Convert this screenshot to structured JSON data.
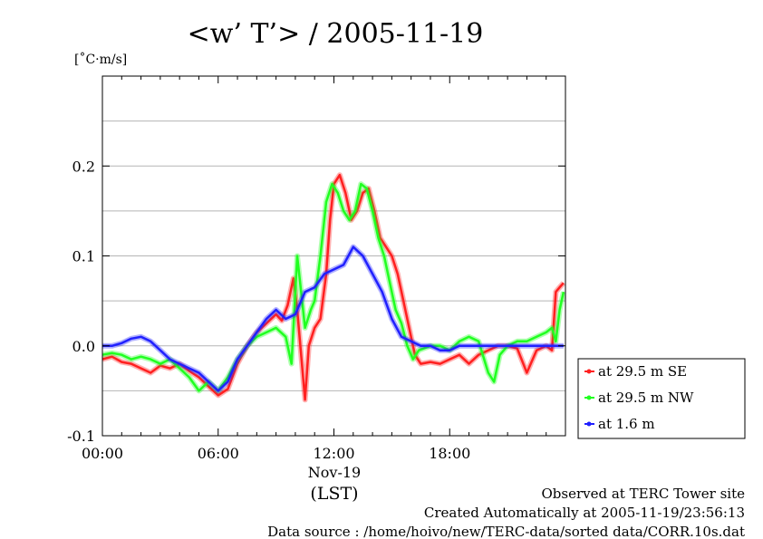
{
  "chart_data": {
    "type": "line",
    "title": "<w’ T’> / 2005-11-19",
    "ylabel": "[˚C·m/s]",
    "xlabel": "(LST)",
    "xdate_label": "Nov-19",
    "xlim": [
      0,
      24
    ],
    "ylim": [
      -0.1,
      0.3
    ],
    "x_ticks": [
      {
        "value": 0,
        "label": "00:00"
      },
      {
        "value": 6,
        "label": "06:00"
      },
      {
        "value": 12,
        "label": "12:00"
      },
      {
        "value": 18,
        "label": "18:00"
      }
    ],
    "y_ticks": [
      {
        "value": -0.1,
        "label": "-0.1"
      },
      {
        "value": 0.0,
        "label": "0.0"
      },
      {
        "value": 0.1,
        "label": "0.1"
      },
      {
        "value": 0.2,
        "label": "0.2"
      }
    ],
    "y_gridlines": [
      -0.05,
      0.0,
      0.05,
      0.1,
      0.15,
      0.2,
      0.25
    ],
    "legend_position": "right-bottom",
    "series": [
      {
        "name": "at 29.5 m SE",
        "color": "#ff2020",
        "x": [
          0,
          0.5,
          1,
          1.5,
          2,
          2.5,
          3,
          3.5,
          4,
          4.5,
          5,
          5.5,
          6,
          6.5,
          7,
          7.5,
          8,
          8.5,
          9,
          9.3,
          9.6,
          9.9,
          10.1,
          10.3,
          10.5,
          10.7,
          11,
          11.3,
          11.6,
          11.8,
          12,
          12.3,
          12.6,
          12.9,
          13.2,
          13.5,
          13.8,
          14.1,
          14.4,
          14.7,
          15,
          15.3,
          15.6,
          15.9,
          16.2,
          16.5,
          17,
          17.5,
          18,
          18.5,
          19,
          19.5,
          20,
          20.5,
          21,
          21.5,
          22,
          22.5,
          23,
          23.3,
          23.5,
          23.7,
          23.9
        ],
        "y": [
          -0.015,
          -0.012,
          -0.018,
          -0.02,
          -0.025,
          -0.03,
          -0.022,
          -0.025,
          -0.02,
          -0.028,
          -0.035,
          -0.045,
          -0.055,
          -0.048,
          -0.02,
          0.0,
          0.015,
          0.025,
          0.035,
          0.028,
          0.045,
          0.075,
          0.04,
          -0.01,
          -0.06,
          0.0,
          0.02,
          0.03,
          0.08,
          0.14,
          0.18,
          0.19,
          0.17,
          0.14,
          0.15,
          0.17,
          0.175,
          0.15,
          0.12,
          0.11,
          0.1,
          0.08,
          0.05,
          0.02,
          -0.01,
          -0.02,
          -0.018,
          -0.02,
          -0.015,
          -0.01,
          -0.02,
          -0.01,
          -0.005,
          0.0,
          0.0,
          -0.003,
          -0.03,
          -0.005,
          0.0,
          -0.005,
          0.06,
          0.065,
          0.07
        ]
      },
      {
        "name": "at 29.5 m NW",
        "color": "#20ff20",
        "x": [
          0,
          0.5,
          1,
          1.5,
          2,
          2.5,
          3,
          3.5,
          4,
          4.5,
          5,
          5.5,
          6,
          6.5,
          7,
          7.5,
          8,
          8.5,
          9,
          9.5,
          9.8,
          10.1,
          10.3,
          10.5,
          10.8,
          11,
          11.3,
          11.6,
          11.9,
          12.2,
          12.5,
          12.8,
          13.1,
          13.4,
          13.7,
          14,
          14.3,
          14.6,
          14.9,
          15.2,
          15.5,
          15.8,
          16.1,
          16.4,
          17,
          17.5,
          18,
          18.5,
          19,
          19.5,
          20,
          20.3,
          20.6,
          21,
          21.5,
          22,
          22.5,
          23,
          23.3,
          23.5,
          23.7,
          23.9
        ],
        "y": [
          -0.01,
          -0.008,
          -0.01,
          -0.015,
          -0.012,
          -0.015,
          -0.02,
          -0.015,
          -0.025,
          -0.035,
          -0.05,
          -0.04,
          -0.05,
          -0.035,
          -0.015,
          0.0,
          0.01,
          0.015,
          0.02,
          0.01,
          -0.02,
          0.1,
          0.06,
          0.02,
          0.04,
          0.05,
          0.1,
          0.16,
          0.18,
          0.17,
          0.15,
          0.14,
          0.15,
          0.18,
          0.175,
          0.15,
          0.12,
          0.1,
          0.07,
          0.04,
          0.025,
          0.0,
          -0.015,
          -0.005,
          0.0,
          0.0,
          -0.005,
          0.005,
          0.01,
          0.005,
          -0.03,
          -0.04,
          -0.01,
          0.0,
          0.005,
          0.005,
          0.01,
          0.015,
          0.02,
          0.005,
          0.04,
          0.06
        ]
      },
      {
        "name": "at 1.6 m",
        "color": "#2020ff",
        "x": [
          0,
          0.5,
          1,
          1.5,
          2,
          2.5,
          3,
          3.5,
          4,
          4.5,
          5,
          5.5,
          6,
          6.5,
          7,
          7.5,
          8,
          8.5,
          9,
          9.5,
          10,
          10.5,
          11,
          11.5,
          12,
          12.5,
          13,
          13.5,
          14,
          14.5,
          15,
          15.5,
          16,
          16.5,
          17,
          17.5,
          18,
          18.5,
          19,
          19.5,
          20,
          21,
          22,
          23,
          23.9
        ],
        "y": [
          0.0,
          0.0,
          0.003,
          0.008,
          0.01,
          0.005,
          -0.005,
          -0.015,
          -0.02,
          -0.025,
          -0.03,
          -0.04,
          -0.05,
          -0.04,
          -0.015,
          0.0,
          0.015,
          0.03,
          0.04,
          0.03,
          0.035,
          0.06,
          0.065,
          0.08,
          0.085,
          0.09,
          0.11,
          0.1,
          0.08,
          0.06,
          0.03,
          0.01,
          0.005,
          0.0,
          0.0,
          -0.005,
          -0.005,
          0.0,
          0.0,
          0.0,
          0.0,
          0.0,
          0.0,
          0.0,
          0.0
        ]
      }
    ],
    "footer_lines": [
      "Observed at TERC Tower site",
      "Created Automatically at 2005-11-19/23:56:13",
      "Data source : /home/hoivo/new/TERC-data/sorted  data/CORR.10s.dat"
    ]
  }
}
